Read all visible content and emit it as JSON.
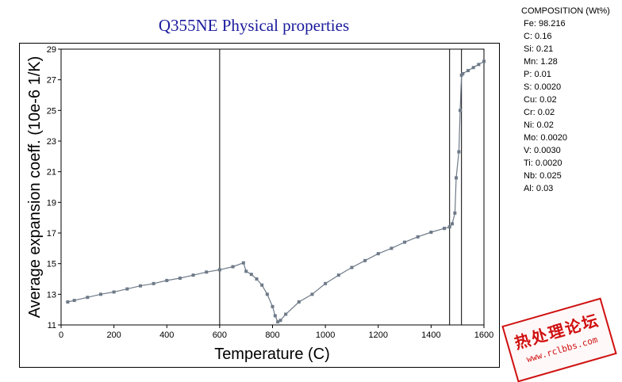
{
  "chart_data": {
    "type": "line",
    "title": "Q355NE  Physical properties",
    "xlabel": "Temperature (C)",
    "ylabel": "Average expansion coeff. (10e-6 1/K)",
    "xlim": [
      0,
      1600
    ],
    "ylim": [
      11,
      29
    ],
    "xticks": [
      0,
      200,
      400,
      600,
      800,
      1000,
      1200,
      1400,
      1600
    ],
    "yticks": [
      11,
      13,
      15,
      17,
      19,
      21,
      23,
      25,
      27,
      29
    ],
    "vlines": [
      600,
      1470,
      1515
    ],
    "grid": false,
    "series": [
      {
        "color": "#6e7a88",
        "x": [
          25,
          50,
          100,
          150,
          200,
          250,
          300,
          350,
          400,
          450,
          500,
          550,
          600,
          650,
          690,
          700,
          720,
          740,
          760,
          780,
          800,
          810,
          820,
          830,
          850,
          900,
          950,
          1000,
          1050,
          1100,
          1150,
          1200,
          1250,
          1300,
          1350,
          1400,
          1450,
          1470,
          1480,
          1490,
          1495,
          1505,
          1510,
          1515,
          1520,
          1540,
          1560,
          1580,
          1600
        ],
        "y": [
          12.5,
          12.6,
          12.8,
          13.0,
          13.15,
          13.35,
          13.55,
          13.7,
          13.9,
          14.05,
          14.25,
          14.45,
          14.6,
          14.8,
          15.05,
          14.5,
          14.3,
          14.0,
          13.6,
          13.0,
          12.2,
          11.6,
          11.2,
          11.3,
          11.7,
          12.5,
          13.0,
          13.7,
          14.25,
          14.75,
          15.2,
          15.65,
          16.0,
          16.4,
          16.75,
          17.05,
          17.3,
          17.4,
          17.6,
          18.3,
          20.6,
          22.3,
          25.0,
          27.3,
          27.4,
          27.6,
          27.8,
          28.0,
          28.2
        ]
      }
    ]
  },
  "composition": {
    "title": "COMPOSITION (Wt%)",
    "items": [
      "Fe: 98.216",
      "C: 0.16",
      "Si: 0.21",
      "Mn: 1.28",
      "P: 0.01",
      "S: 0.0020",
      "Cu: 0.02",
      "Cr: 0.02",
      "Ni: 0.02",
      "Mo: 0.0020",
      "V: 0.0030",
      "Ti: 0.0020",
      "Nb: 0.025",
      "Al: 0.03"
    ]
  },
  "watermark": {
    "line1": "热处理论坛",
    "line2": "www.rclbbs.com"
  }
}
